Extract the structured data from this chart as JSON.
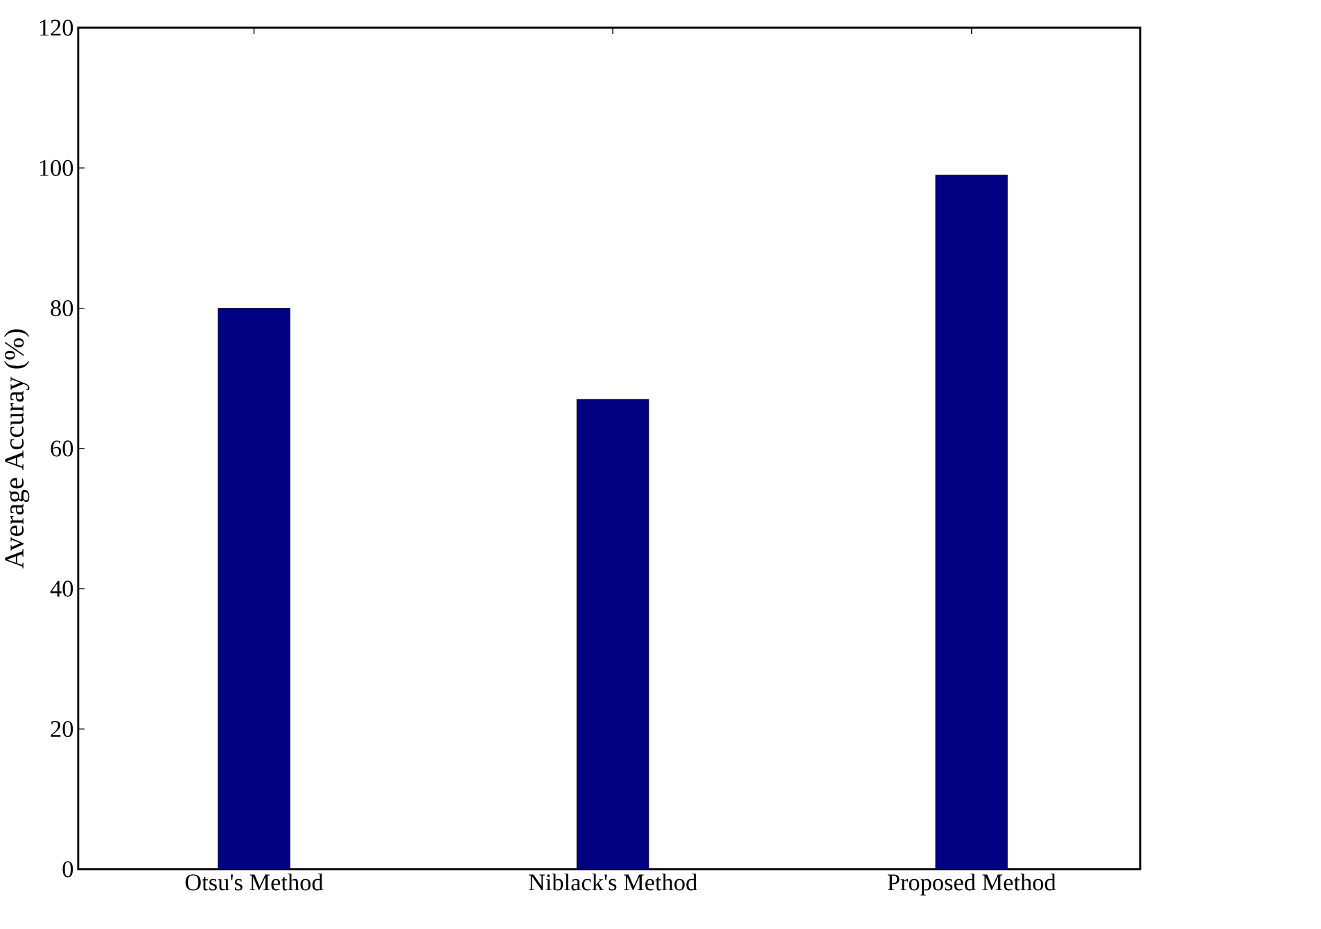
{
  "chart_data": {
    "type": "bar",
    "ylabel": "Average Accuray (%)",
    "categories": [
      "Otsu's Method",
      "Niblack's Method",
      "Proposed Method"
    ],
    "values": [
      80,
      67,
      99
    ],
    "color": "#000080",
    "ylim": [
      0,
      120
    ],
    "yticks": [
      0,
      20,
      40,
      60,
      80,
      100,
      120
    ]
  }
}
